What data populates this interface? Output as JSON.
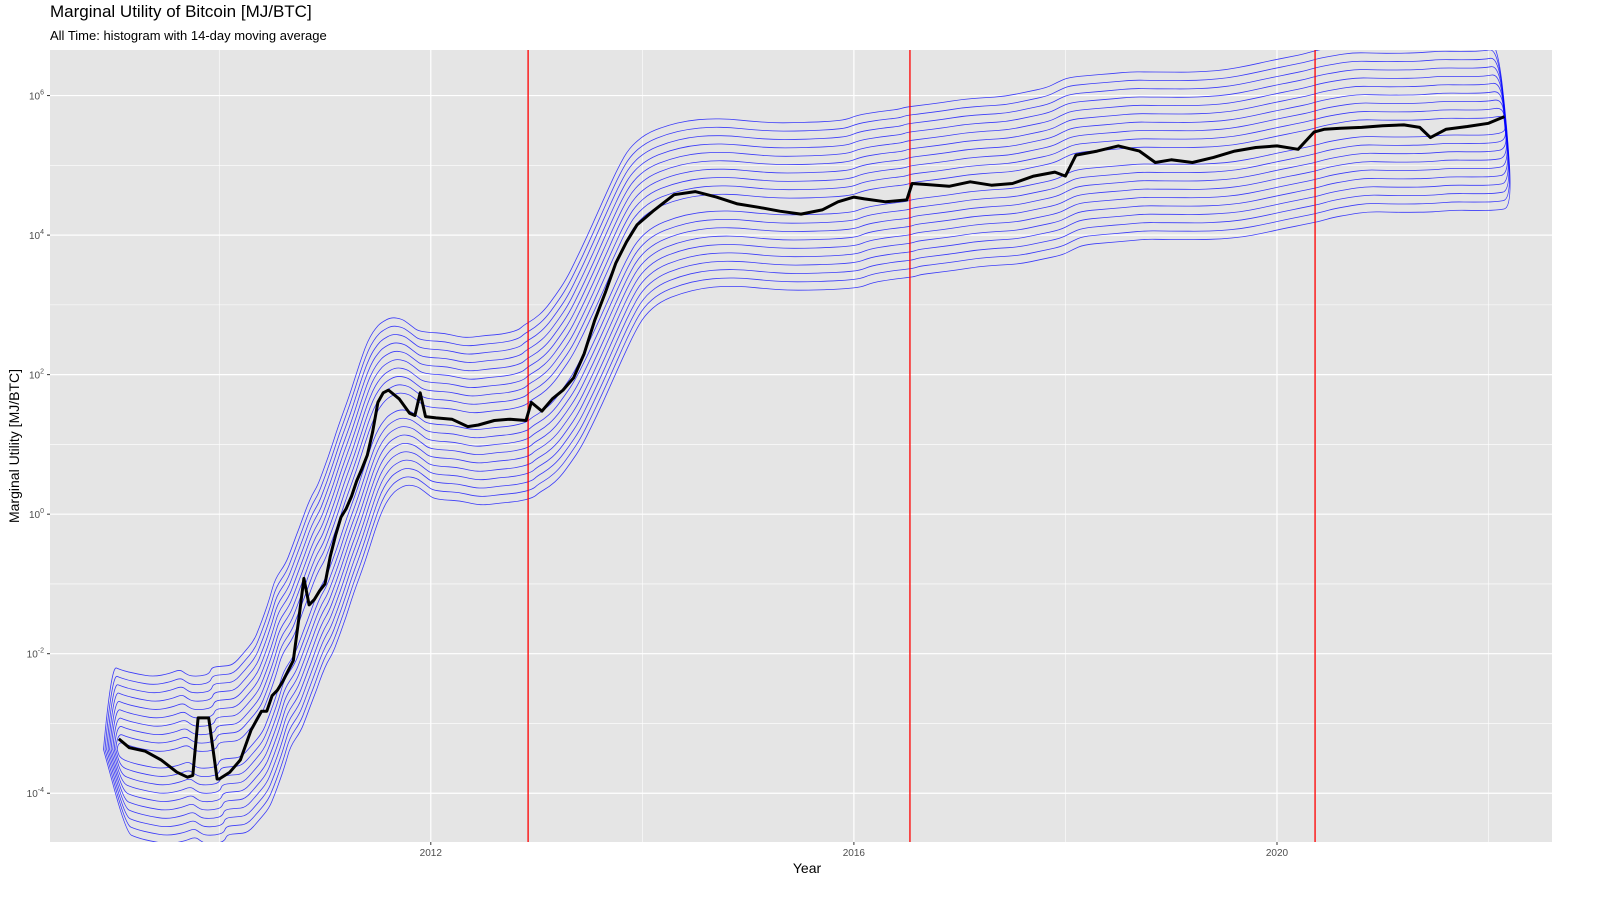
{
  "chart_data": {
    "type": "line",
    "title": "Marginal Utility of Bitcoin [MJ/BTC]",
    "subtitle": "All Time: histogram with 14-day moving average",
    "xlabel": "Year",
    "ylabel": "Marginal Utility [MJ/BTC]",
    "x_tick_labels": [
      "2012",
      "2016",
      "2020"
    ],
    "x_ticks": [
      2012,
      2016,
      2020
    ],
    "y_scale": "log10",
    "y_ticks": [
      {
        "base": "10",
        "exp": "-4",
        "value": 0.0001
      },
      {
        "base": "10",
        "exp": "-2",
        "value": 0.01
      },
      {
        "base": "10",
        "exp": "0",
        "value": 1
      },
      {
        "base": "10",
        "exp": "2",
        "value": 100
      },
      {
        "base": "10",
        "exp": "4",
        "value": 10000
      },
      {
        "base": "10",
        "exp": "6",
        "value": 1000000
      }
    ],
    "xlim": [
      2008.4,
      2022.6
    ],
    "ylim": [
      2e-05,
      4500000
    ],
    "vlines": [
      2012.92,
      2016.53,
      2020.36
    ],
    "vline_color": "#ff0000",
    "line_color": "#000000",
    "contour_color": "#0000ff",
    "background": "#e5e5e5",
    "grid_color": "#ffffff",
    "series": [
      {
        "x": [
          2009.05,
          2009.15,
          2009.3,
          2009.45,
          2009.6,
          2009.7,
          2009.75,
          2009.8,
          2009.9,
          2009.98,
          2010.0,
          2010.1,
          2010.2,
          2010.3,
          2010.4,
          2010.45,
          2010.5,
          2010.55,
          2010.6,
          2010.7,
          2010.75,
          2010.8,
          2010.85,
          2010.9,
          2010.95,
          2011.0,
          2011.05,
          2011.1,
          2011.15,
          2011.2,
          2011.25,
          2011.3,
          2011.35,
          2011.4,
          2011.45,
          2011.5,
          2011.55,
          2011.6,
          2011.7,
          2011.8,
          2011.85,
          2011.9,
          2011.95,
          2012.05,
          2012.2,
          2012.35,
          2012.45,
          2012.6,
          2012.75,
          2012.9,
          2012.95,
          2013.05,
          2013.15,
          2013.25,
          2013.35,
          2013.45,
          2013.55,
          2013.65,
          2013.75,
          2013.85,
          2013.95,
          2014.1,
          2014.3,
          2014.5,
          2014.7,
          2014.9,
          2015.1,
          2015.3,
          2015.5,
          2015.7,
          2015.85,
          2016.0,
          2016.1,
          2016.3,
          2016.5,
          2016.55,
          2016.7,
          2016.9,
          2017.1,
          2017.3,
          2017.5,
          2017.7,
          2017.9,
          2018.0,
          2018.1,
          2018.3,
          2018.5,
          2018.7,
          2018.85,
          2019.0,
          2019.2,
          2019.4,
          2019.6,
          2019.8,
          2020.0,
          2020.2,
          2020.35,
          2020.45,
          2020.6,
          2020.8,
          2021.0,
          2021.2,
          2021.35,
          2021.45,
          2021.6,
          2021.8,
          2022.0,
          2022.15
        ],
        "y": [
          0.0006,
          0.00045,
          0.0004,
          0.0003,
          0.0002,
          0.00017,
          0.00018,
          0.0012,
          0.0012,
          0.00016,
          0.00016,
          0.0002,
          0.0003,
          0.0008,
          0.0015,
          0.0015,
          0.0025,
          0.003,
          0.004,
          0.008,
          0.03,
          0.12,
          0.05,
          0.06,
          0.08,
          0.1,
          0.25,
          0.5,
          0.9,
          1.2,
          1.8,
          3.0,
          4.5,
          7.0,
          15,
          40,
          55,
          60,
          45,
          28,
          26,
          55,
          25,
          24,
          23,
          18,
          19,
          22,
          23,
          22,
          40,
          30,
          45,
          60,
          90,
          200,
          600,
          1500,
          4000,
          8000,
          14000,
          22000,
          38000,
          42000,
          35000,
          28000,
          25000,
          22000,
          20000,
          23000,
          30000,
          35000,
          33000,
          30000,
          32000,
          55000,
          53000,
          50000,
          58000,
          52000,
          55000,
          70000,
          80000,
          70000,
          140000,
          160000,
          190000,
          160000,
          110000,
          120000,
          110000,
          130000,
          160000,
          180000,
          190000,
          170000,
          300000,
          330000,
          340000,
          350000,
          370000,
          380000,
          350000,
          250000,
          330000,
          360000,
          400000,
          500000
        ]
      }
    ],
    "contour_levels": 10
  }
}
